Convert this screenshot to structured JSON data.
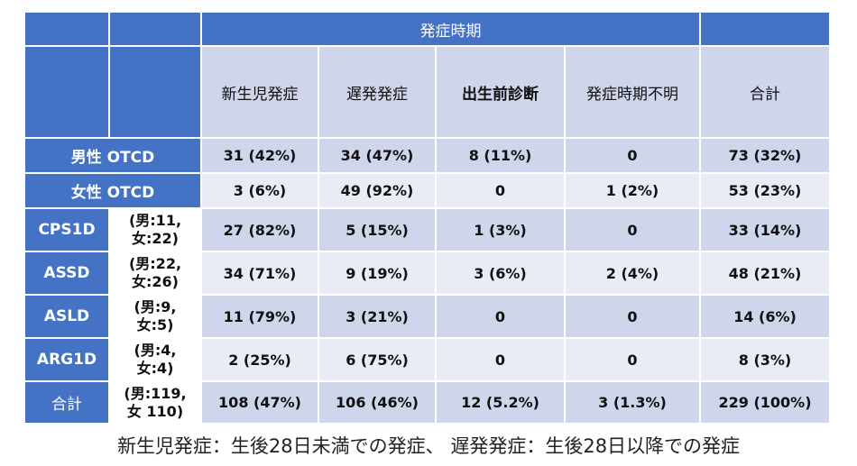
{
  "header": {
    "group_label": "発症時期"
  },
  "columns": [
    "新生児発症",
    "遅発発症",
    "出生前診断",
    "発症時期不明",
    "合計"
  ],
  "rows": [
    {
      "label": "男性 OTCD",
      "sub": [
        "",
        ""
      ],
      "cells": [
        "31 (42%)",
        "34 (47%)",
        "8 (11%)",
        "0",
        "73 (32%)"
      ]
    },
    {
      "label": "女性 OTCD",
      "sub": [
        "",
        ""
      ],
      "cells": [
        "3 (6%)",
        "49 (92%)",
        "0",
        "1 (2%)",
        "53 (23%)"
      ]
    },
    {
      "label": "CPS1D",
      "sub": [
        "(男:11,",
        "女:22)"
      ],
      "cells": [
        "27 (82%)",
        "5 (15%)",
        "1 (3%)",
        "0",
        "33 (14%)"
      ]
    },
    {
      "label": "ASSD",
      "sub": [
        "(男:22,",
        "女:26)"
      ],
      "cells": [
        "34 (71%)",
        "9 (19%)",
        "3 (6%)",
        "2 (4%)",
        "48 (21%)"
      ]
    },
    {
      "label": "ASLD",
      "sub": [
        "(男:9,",
        "女:5)"
      ],
      "cells": [
        "11 (79%)",
        "3 (21%)",
        "0",
        "0",
        "14 (6%)"
      ]
    },
    {
      "label": "ARG1D",
      "sub": [
        "(男:4,",
        "女:4)"
      ],
      "cells": [
        "2 (25%)",
        "6 (75%)",
        "0",
        "0",
        "8 (3%)"
      ]
    },
    {
      "label": "合計",
      "sub": [
        "(男:119,",
        "女 110)"
      ],
      "cells": [
        "108 (47%)",
        "106 (46%)",
        "12 (5.2%)",
        "3 (1.3%)",
        "229 (100%)"
      ]
    }
  ],
  "caption": "新生児発症：生後28日未満での発症、 遅発発症：生後28日以降での発症",
  "colors": {
    "header": "#4472c4",
    "band_dark": "#cfd5ea",
    "band_light": "#e9ebf5"
  }
}
